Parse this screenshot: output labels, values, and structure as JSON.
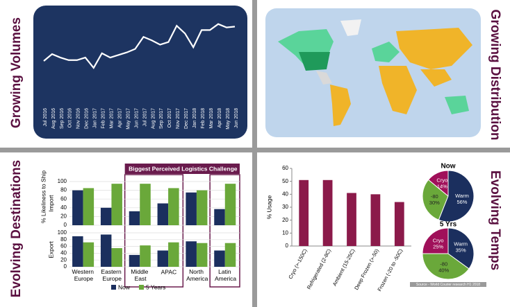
{
  "titles": [
    "Growing Volumes",
    "Growing Distribution",
    "Evolving Destinations",
    "Evolving Temps"
  ],
  "chart_data": [
    {
      "type": "line",
      "color": "#ffffff",
      "ylim": [
        0,
        100
      ],
      "categories": [
        "Jul 2016",
        "Aug 2016",
        "Sep 2016",
        "Oct 2016",
        "Nov 2016",
        "Dec 2016",
        "Jan 2017",
        "Feb 2017",
        "Mar 2017",
        "Apr 2017",
        "May 2017",
        "Jun 2017",
        "Jul 2017",
        "Aug 2017",
        "Sep 2017",
        "Oct 2017",
        "Nov 2017",
        "Dec 2017",
        "Jan 2018",
        "Feb 2018",
        "Mar 2018",
        "Apr 2018",
        "May 2018",
        "Jun 2018"
      ],
      "values": [
        50,
        58,
        54,
        51,
        51,
        54,
        42,
        59,
        54,
        57,
        60,
        64,
        78,
        74,
        69,
        72,
        91,
        82,
        66,
        86,
        86,
        93,
        89,
        90
      ]
    },
    {
      "type": "grouped_bar",
      "annotation": "Biggest Perceived Logistics Challenge",
      "y_label": "% Likeliness to Ship",
      "y_labels": {
        "import": "Import",
        "export": "Export"
      },
      "ylim": [
        0,
        100
      ],
      "yticks": [
        0,
        20,
        40,
        60,
        80,
        100
      ],
      "categories": [
        "Western Europe",
        "Eastern Europe",
        "Middle East",
        "APAC",
        "North America",
        "Latin America"
      ],
      "series": [
        {
          "name": "Now",
          "color": "#1b2f5e",
          "import": [
            80,
            40,
            32,
            50,
            75,
            37
          ],
          "export": [
            90,
            95,
            35,
            48,
            75,
            48
          ]
        },
        {
          "name": "5 Years",
          "color": "#6aa83a",
          "import": [
            85,
            95,
            95,
            85,
            80,
            95
          ],
          "export": [
            72,
            55,
            63,
            72,
            70,
            70
          ]
        }
      ]
    },
    {
      "type": "bar",
      "y_label": "% Usage",
      "color": "#8b1a4a",
      "ylim": [
        0,
        60
      ],
      "yticks": [
        0,
        10,
        20,
        30,
        40,
        50,
        60
      ],
      "categories": [
        "Cryo (>-150C)",
        "Refrigerated (2-8C)",
        "Ambient (15-25C)",
        "Deep Frozen (>-50)",
        "Frozen (-20 to -50C)"
      ],
      "values": [
        51,
        51,
        41,
        40,
        34
      ]
    },
    {
      "type": "pie",
      "title": "Now",
      "categories": [
        "Cryo",
        "-80",
        "Warm"
      ],
      "values": [
        14,
        30,
        56
      ],
      "value_labels": [
        "14%",
        "30%",
        "56%"
      ],
      "colors": [
        "#a0105a",
        "#6aa83a",
        "#1b2f5e"
      ]
    },
    {
      "type": "pie",
      "title": "5 Yrs",
      "categories": [
        "Cryo",
        "-80",
        "Warm"
      ],
      "values": [
        25,
        40,
        35
      ],
      "value_labels": [
        "25%",
        "40%",
        "35%"
      ],
      "colors": [
        "#a0105a",
        "#6aa83a",
        "#1b2f5e"
      ],
      "source": "Source - World Courier research H1 2018"
    }
  ]
}
